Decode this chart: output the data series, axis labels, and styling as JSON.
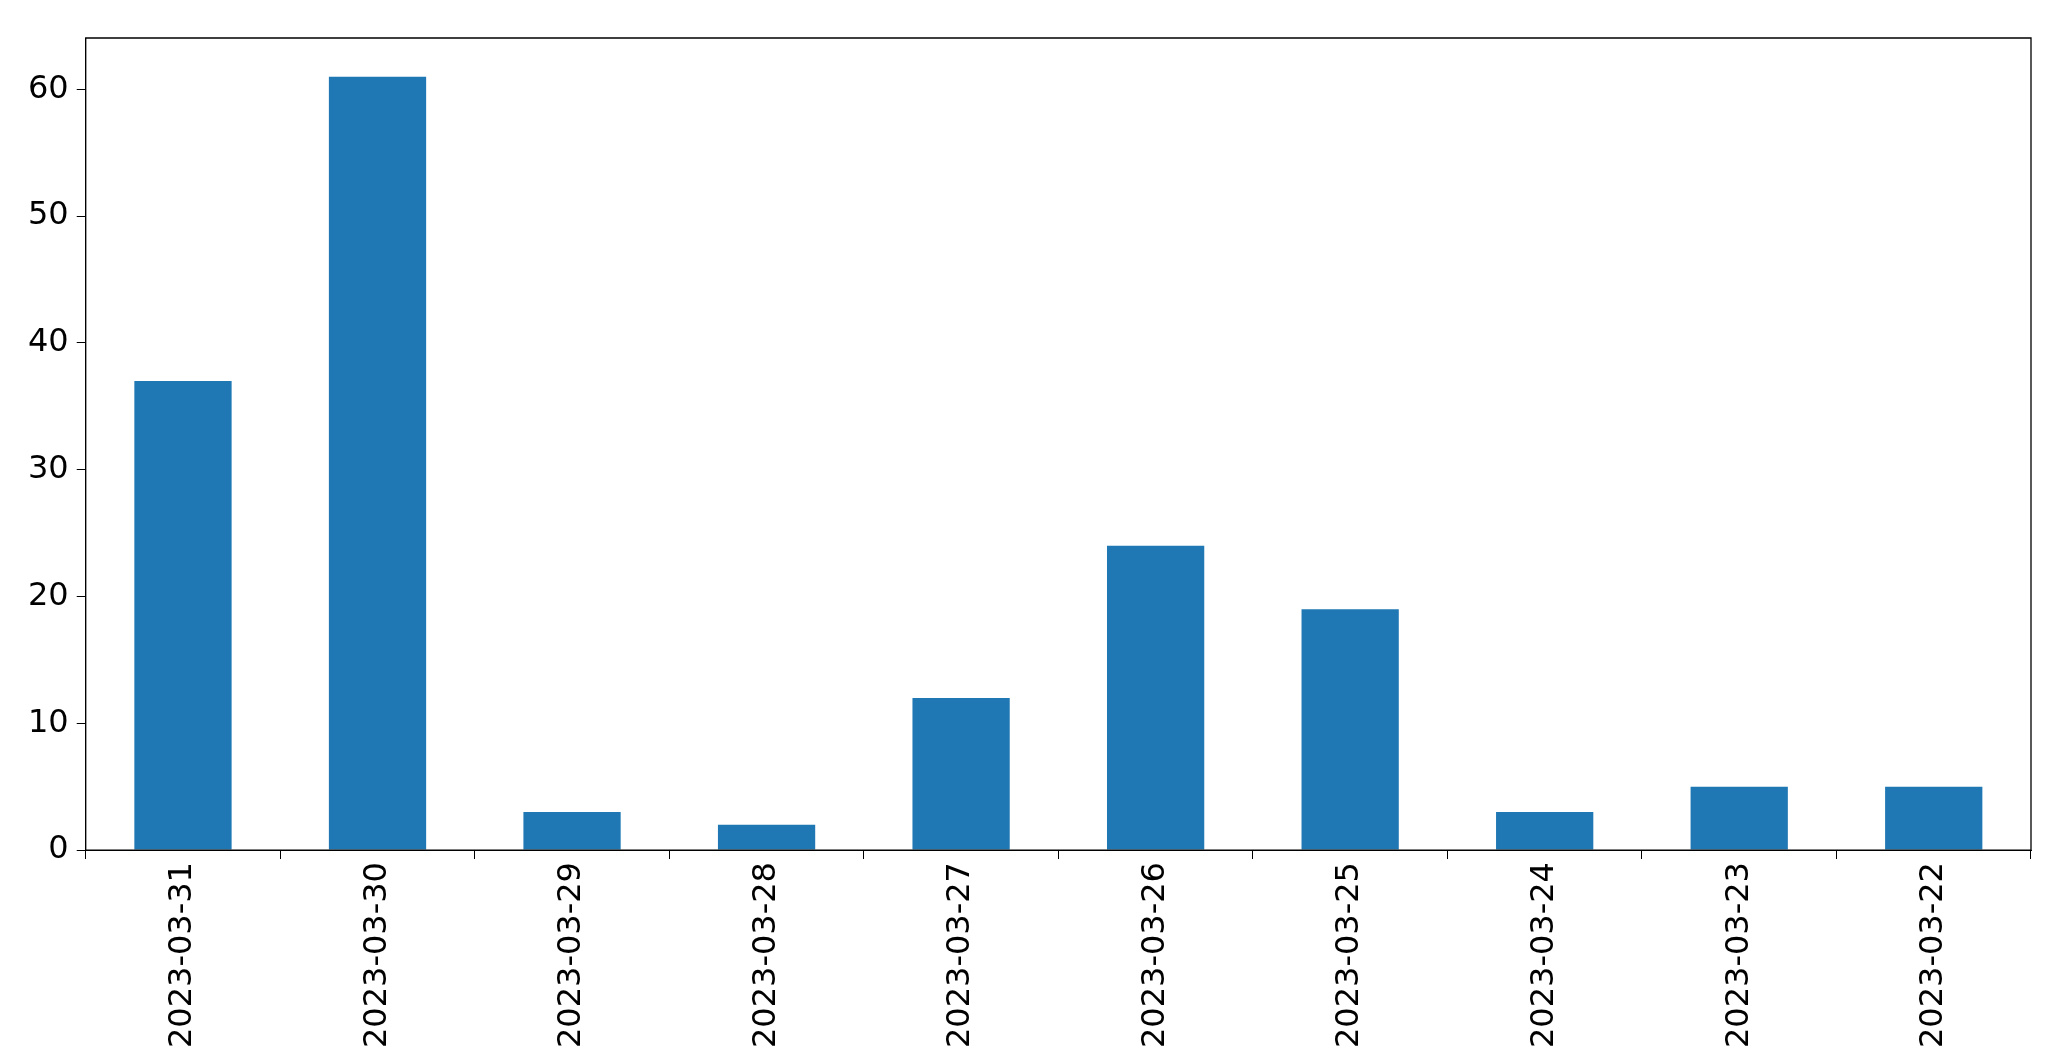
{
  "chart_data": {
    "type": "bar",
    "categories": [
      "2023-03-31",
      "2023-03-30",
      "2023-03-29",
      "2023-03-28",
      "2023-03-27",
      "2023-03-26",
      "2023-03-25",
      "2023-03-24",
      "2023-03-23",
      "2023-03-22"
    ],
    "values": [
      37,
      61,
      3,
      2,
      12,
      24,
      19,
      3,
      5,
      5
    ],
    "color": "#1f77b4",
    "ylim": [
      0,
      64.05
    ],
    "yticks": [
      0,
      10,
      20,
      30,
      40,
      50,
      60
    ],
    "grid": false,
    "legend": false
  }
}
